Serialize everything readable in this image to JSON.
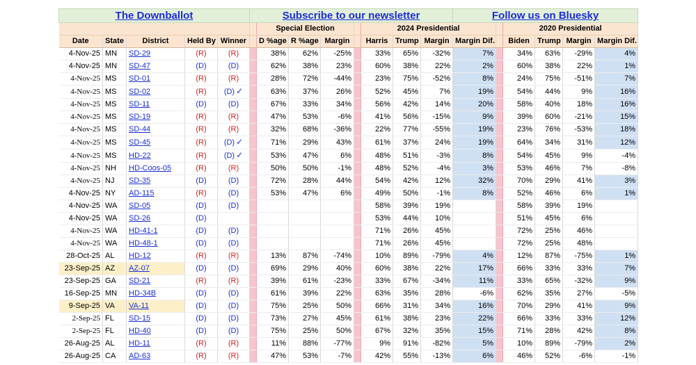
{
  "links": {
    "downballot": "The Downballot",
    "newsletter": "Subscribe to our newsletter",
    "bluesky": "Follow us on Bluesky"
  },
  "groups": {
    "special": "Special Election",
    "p2024": "2024 Presidential",
    "p2020": "2020 Presidential"
  },
  "headers": [
    "Date",
    "State",
    "District",
    "Held By",
    "Winner",
    "D %age",
    "R %age",
    "Margin",
    "Harris",
    "Trump",
    "Margin",
    "Margin Dif.",
    "Biden",
    "Trump",
    "Margin",
    "Margin Dif."
  ],
  "colors": {
    "rep": "#d42020",
    "dem": "#1a2ed8",
    "highlight": "#cfe0f3",
    "separator": "#f6c4cc",
    "header_bg": "#fbe5d0",
    "link_bg": "#e2efd9",
    "row_highlight": "#fdf0c8"
  },
  "rows": [
    {
      "date": "4-Nov-25",
      "serif": false,
      "state": "MN",
      "district": "SD-29",
      "held": "(R)",
      "winner": "(R)",
      "check": false,
      "dpct": "38%",
      "rpct": "62%",
      "margin": "-25%",
      "harris": "33%",
      "trump24": "65%",
      "m24": "-32%",
      "mdif24": "7%",
      "hl24": true,
      "biden": "34%",
      "trump20": "63%",
      "m20": "-29%",
      "mdif20": "4%",
      "hl20": true,
      "highlight": false
    },
    {
      "date": "4-Nov-25",
      "serif": false,
      "state": "MN",
      "district": "SD-47",
      "held": "(D)",
      "winner": "(D)",
      "check": false,
      "dpct": "62%",
      "rpct": "38%",
      "margin": "23%",
      "harris": "60%",
      "trump24": "38%",
      "m24": "22%",
      "mdif24": "2%",
      "hl24": true,
      "biden": "60%",
      "trump20": "38%",
      "m20": "22%",
      "mdif20": "1%",
      "hl20": true,
      "highlight": false
    },
    {
      "date": "4-Nov-25",
      "serif": true,
      "state": "MS",
      "district": "SD-01",
      "held": "(R)",
      "winner": "(R)",
      "check": false,
      "dpct": "28%",
      "rpct": "72%",
      "margin": "-44%",
      "harris": "23%",
      "trump24": "75%",
      "m24": "-52%",
      "mdif24": "8%",
      "hl24": true,
      "biden": "24%",
      "trump20": "75%",
      "m20": "-51%",
      "mdif20": "7%",
      "hl20": true,
      "highlight": false
    },
    {
      "date": "4-Nov-25",
      "serif": true,
      "state": "MS",
      "district": "SD-02",
      "held": "(R)",
      "winner": "(D)",
      "check": true,
      "dpct": "63%",
      "rpct": "37%",
      "margin": "26%",
      "harris": "52%",
      "trump24": "45%",
      "m24": "7%",
      "mdif24": "19%",
      "hl24": true,
      "biden": "54%",
      "trump20": "44%",
      "m20": "9%",
      "mdif20": "16%",
      "hl20": true,
      "highlight": false
    },
    {
      "date": "4-Nov-25",
      "serif": true,
      "state": "MS",
      "district": "SD-11",
      "held": "(D)",
      "winner": "(D)",
      "check": false,
      "dpct": "67%",
      "rpct": "33%",
      "margin": "34%",
      "harris": "56%",
      "trump24": "42%",
      "m24": "14%",
      "mdif24": "20%",
      "hl24": true,
      "biden": "58%",
      "trump20": "40%",
      "m20": "18%",
      "mdif20": "16%",
      "hl20": true,
      "highlight": false
    },
    {
      "date": "4-Nov-25",
      "serif": true,
      "state": "MS",
      "district": "SD-19",
      "held": "(R)",
      "winner": "(R)",
      "check": false,
      "dpct": "47%",
      "rpct": "53%",
      "margin": "-6%",
      "harris": "41%",
      "trump24": "56%",
      "m24": "-15%",
      "mdif24": "9%",
      "hl24": true,
      "biden": "39%",
      "trump20": "60%",
      "m20": "-21%",
      "mdif20": "15%",
      "hl20": true,
      "highlight": false
    },
    {
      "date": "4-Nov-25",
      "serif": true,
      "state": "MS",
      "district": "SD-44",
      "held": "(R)",
      "winner": "(R)",
      "check": false,
      "dpct": "32%",
      "rpct": "68%",
      "margin": "-36%",
      "harris": "22%",
      "trump24": "77%",
      "m24": "-55%",
      "mdif24": "19%",
      "hl24": true,
      "biden": "23%",
      "trump20": "76%",
      "m20": "-53%",
      "mdif20": "18%",
      "hl20": true,
      "highlight": false
    },
    {
      "date": "4-Nov-25",
      "serif": true,
      "state": "MS",
      "district": "SD-45",
      "held": "(R)",
      "winner": "(D)",
      "check": true,
      "dpct": "71%",
      "rpct": "29%",
      "margin": "43%",
      "harris": "61%",
      "trump24": "37%",
      "m24": "24%",
      "mdif24": "19%",
      "hl24": true,
      "biden": "64%",
      "trump20": "34%",
      "m20": "31%",
      "mdif20": "12%",
      "hl20": true,
      "highlight": false
    },
    {
      "date": "4-Nov-25",
      "serif": true,
      "state": "MS",
      "district": "HD-22",
      "held": "(R)",
      "winner": "(D)",
      "check": true,
      "dpct": "53%",
      "rpct": "47%",
      "margin": "6%",
      "harris": "48%",
      "trump24": "51%",
      "m24": "-3%",
      "mdif24": "8%",
      "hl24": true,
      "biden": "54%",
      "trump20": "45%",
      "m20": "9%",
      "mdif20": "-4%",
      "hl20": false,
      "highlight": false
    },
    {
      "date": "4-Nov-25",
      "serif": true,
      "state": "NH",
      "district": "HD-Coos-05",
      "held": "(R)",
      "winner": "(R)",
      "check": false,
      "dpct": "50%",
      "rpct": "50%",
      "margin": "-1%",
      "harris": "48%",
      "trump24": "52%",
      "m24": "-4%",
      "mdif24": "3%",
      "hl24": true,
      "biden": "53%",
      "trump20": "46%",
      "m20": "7%",
      "mdif20": "-8%",
      "hl20": false,
      "highlight": false
    },
    {
      "date": "4-Nov-25",
      "serif": true,
      "state": "NJ",
      "district": "SD-35",
      "held": "(D)",
      "winner": "(D)",
      "check": false,
      "dpct": "72%",
      "rpct": "28%",
      "margin": "44%",
      "harris": "54%",
      "trump24": "42%",
      "m24": "12%",
      "mdif24": "32%",
      "hl24": true,
      "biden": "70%",
      "trump20": "29%",
      "m20": "41%",
      "mdif20": "3%",
      "hl20": true,
      "highlight": false
    },
    {
      "date": "4-Nov-25",
      "serif": false,
      "state": "NY",
      "district": "AD-115",
      "held": "(R)",
      "winner": "(D)",
      "check": false,
      "dpct": "53%",
      "rpct": "47%",
      "margin": "6%",
      "harris": "49%",
      "trump24": "50%",
      "m24": "-1%",
      "mdif24": "8%",
      "hl24": true,
      "biden": "52%",
      "trump20": "46%",
      "m20": "6%",
      "mdif20": "1%",
      "hl20": true,
      "highlight": false
    },
    {
      "date": "4-Nov-25",
      "serif": false,
      "state": "WA",
      "district": "SD-05",
      "held": "(D)",
      "winner": "(D)",
      "check": false,
      "dpct": "",
      "rpct": "",
      "margin": "",
      "harris": "58%",
      "trump24": "39%",
      "m24": "19%",
      "mdif24": "",
      "hl24": false,
      "biden": "58%",
      "trump20": "39%",
      "m20": "19%",
      "mdif20": "",
      "hl20": false,
      "highlight": false
    },
    {
      "date": "4-Nov-25",
      "serif": false,
      "state": "WA",
      "district": "SD-26",
      "held": "(D)",
      "winner": "",
      "check": false,
      "dpct": "",
      "rpct": "",
      "margin": "",
      "harris": "53%",
      "trump24": "44%",
      "m24": "10%",
      "mdif24": "",
      "hl24": false,
      "biden": "51%",
      "trump20": "45%",
      "m20": "6%",
      "mdif20": "",
      "hl20": false,
      "highlight": false
    },
    {
      "date": "4-Nov-25",
      "serif": true,
      "state": "WA",
      "district": "HD-41-1",
      "held": "(D)",
      "winner": "(D)",
      "check": false,
      "dpct": "",
      "rpct": "",
      "margin": "",
      "harris": "71%",
      "trump24": "26%",
      "m24": "45%",
      "mdif24": "",
      "hl24": false,
      "biden": "72%",
      "trump20": "25%",
      "m20": "46%",
      "mdif20": "",
      "hl20": false,
      "highlight": false
    },
    {
      "date": "4-Nov-25",
      "serif": true,
      "state": "WA",
      "district": "HD-48-1",
      "held": "(D)",
      "winner": "(D)",
      "check": false,
      "dpct": "",
      "rpct": "",
      "margin": "",
      "harris": "71%",
      "trump24": "26%",
      "m24": "45%",
      "mdif24": "",
      "hl24": false,
      "biden": "72%",
      "trump20": "25%",
      "m20": "48%",
      "mdif20": "",
      "hl20": false,
      "highlight": false
    },
    {
      "date": "28-Oct-25",
      "serif": false,
      "state": "AL",
      "district": "HD-12",
      "held": "(R)",
      "winner": "(R)",
      "check": false,
      "dpct": "13%",
      "rpct": "87%",
      "margin": "-74%",
      "harris": "10%",
      "trump24": "89%",
      "m24": "-79%",
      "mdif24": "4%",
      "hl24": true,
      "biden": "12%",
      "trump20": "87%",
      "m20": "-75%",
      "mdif20": "1%",
      "hl20": true,
      "highlight": false
    },
    {
      "date": "23-Sep-25",
      "serif": false,
      "state": "AZ",
      "district": "AZ-07",
      "held": "(D)",
      "winner": "(D)",
      "check": false,
      "dpct": "69%",
      "rpct": "29%",
      "margin": "40%",
      "harris": "60%",
      "trump24": "38%",
      "m24": "22%",
      "mdif24": "17%",
      "hl24": true,
      "biden": "66%",
      "trump20": "33%",
      "m20": "33%",
      "mdif20": "7%",
      "hl20": true,
      "highlight": true
    },
    {
      "date": "23-Sep-25",
      "serif": false,
      "state": "GA",
      "district": "SD-21",
      "held": "(R)",
      "winner": "(R)",
      "check": false,
      "dpct": "39%",
      "rpct": "61%",
      "margin": "-23%",
      "harris": "33%",
      "trump24": "67%",
      "m24": "-34%",
      "mdif24": "11%",
      "hl24": true,
      "biden": "33%",
      "trump20": "65%",
      "m20": "-32%",
      "mdif20": "9%",
      "hl20": true,
      "highlight": false
    },
    {
      "date": "16-Sep-25",
      "serif": false,
      "state": "MN",
      "district": "HD-34B",
      "held": "(D)",
      "winner": "(D)",
      "check": false,
      "dpct": "61%",
      "rpct": "39%",
      "margin": "22%",
      "harris": "63%",
      "trump24": "35%",
      "m24": "28%",
      "mdif24": "-6%",
      "hl24": false,
      "biden": "62%",
      "trump20": "35%",
      "m20": "27%",
      "mdif20": "-5%",
      "hl20": false,
      "highlight": false
    },
    {
      "date": "9-Sep-25",
      "serif": false,
      "state": "VA",
      "district": "VA-11",
      "held": "(D)",
      "winner": "(D)",
      "check": false,
      "dpct": "75%",
      "rpct": "25%",
      "margin": "50%",
      "harris": "66%",
      "trump24": "31%",
      "m24": "34%",
      "mdif24": "16%",
      "hl24": true,
      "biden": "70%",
      "trump20": "29%",
      "m20": "41%",
      "mdif20": "9%",
      "hl20": true,
      "highlight": true
    },
    {
      "date": "2-Sep-25",
      "serif": true,
      "state": "FL",
      "district": "SD-15",
      "held": "(D)",
      "winner": "(D)",
      "check": false,
      "dpct": "73%",
      "rpct": "27%",
      "margin": "45%",
      "harris": "61%",
      "trump24": "38%",
      "m24": "23%",
      "mdif24": "22%",
      "hl24": true,
      "biden": "66%",
      "trump20": "33%",
      "m20": "33%",
      "mdif20": "12%",
      "hl20": true,
      "highlight": false
    },
    {
      "date": "2-Sep-25",
      "serif": true,
      "state": "FL",
      "district": "HD-40",
      "held": "(D)",
      "winner": "(D)",
      "check": false,
      "dpct": "75%",
      "rpct": "25%",
      "margin": "50%",
      "harris": "67%",
      "trump24": "32%",
      "m24": "35%",
      "mdif24": "15%",
      "hl24": true,
      "biden": "71%",
      "trump20": "28%",
      "m20": "42%",
      "mdif20": "8%",
      "hl20": true,
      "highlight": false
    },
    {
      "date": "26-Aug-25",
      "serif": false,
      "state": "AL",
      "district": "HD-11",
      "held": "(R)",
      "winner": "(R)",
      "check": false,
      "dpct": "11%",
      "rpct": "88%",
      "margin": "-77%",
      "harris": "9%",
      "trump24": "91%",
      "m24": "-82%",
      "mdif24": "5%",
      "hl24": true,
      "biden": "10%",
      "trump20": "89%",
      "m20": "-79%",
      "mdif20": "2%",
      "hl20": true,
      "highlight": false
    },
    {
      "date": "26-Aug-25",
      "serif": false,
      "state": "CA",
      "district": "AD-63",
      "held": "(R)",
      "winner": "(R)",
      "check": false,
      "dpct": "47%",
      "rpct": "53%",
      "margin": "-7%",
      "harris": "42%",
      "trump24": "55%",
      "m24": "-13%",
      "mdif24": "6%",
      "hl24": true,
      "biden": "46%",
      "trump20": "52%",
      "m20": "-6%",
      "mdif20": "-1%",
      "hl20": false,
      "highlight": false
    }
  ]
}
